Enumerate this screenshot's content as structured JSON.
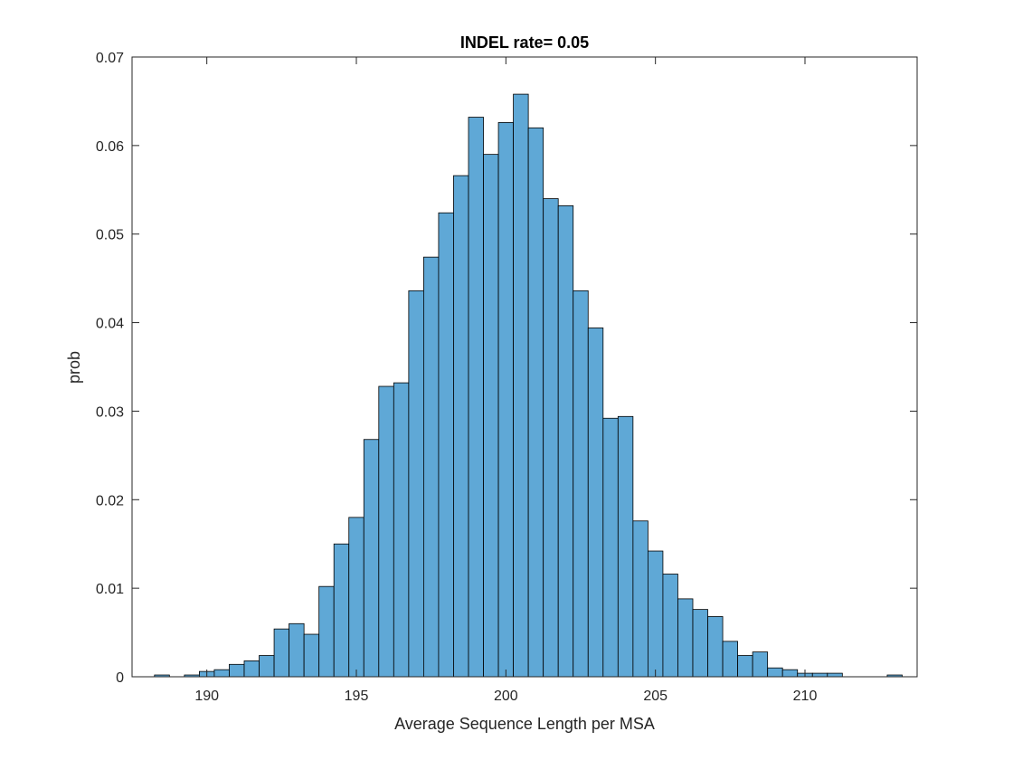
{
  "chart_data": {
    "type": "bar",
    "title": "INDEL rate= 0.05",
    "xlabel": "Average Sequence Length per MSA",
    "ylabel": "prob",
    "xlim": [
      187.5,
      213.75
    ],
    "ylim": [
      0,
      0.07
    ],
    "xticks": [
      190,
      195,
      200,
      205,
      210
    ],
    "yticks": [
      0,
      0.01,
      0.02,
      0.03,
      0.04,
      0.05,
      0.06,
      0.07
    ],
    "xtick_labels": [
      "190",
      "195",
      "200",
      "205",
      "210"
    ],
    "ytick_labels": [
      "0",
      "0.01",
      "0.02",
      "0.03",
      "0.04",
      "0.05",
      "0.06",
      "0.07"
    ],
    "bin_start": 188.25,
    "bin_width": 0.5,
    "values": [
      0.0002,
      0,
      0.0002,
      0.0006,
      0.0008,
      0.0014,
      0.0018,
      0.0024,
      0.0054,
      0.006,
      0.0048,
      0.0102,
      0.015,
      0.018,
      0.0268,
      0.0328,
      0.0332,
      0.0436,
      0.0474,
      0.0524,
      0.0566,
      0.0632,
      0.059,
      0.0626,
      0.0658,
      0.062,
      0.054,
      0.0532,
      0.0436,
      0.0394,
      0.0292,
      0.0294,
      0.0176,
      0.0142,
      0.0116,
      0.0088,
      0.0076,
      0.0068,
      0.004,
      0.0024,
      0.0028,
      0.001,
      0.0008,
      0.0004,
      0.0004,
      0.0004,
      0,
      0,
      0,
      0.0002
    ],
    "bar_color": "#5fa8d6",
    "edge_color": "#000000",
    "grid": false,
    "box": true
  }
}
